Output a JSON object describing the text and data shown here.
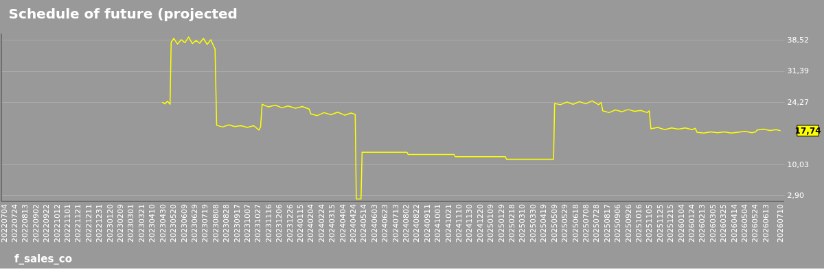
{
  "chart_data": {
    "type": "line",
    "title": "Schedule of future (projected",
    "series": [
      {
        "name": "f_sales_co",
        "color": "#ffff00",
        "x": [
          "2023-04-28",
          "2023-05-03",
          "2023-05-08",
          "2023-05-13",
          "2023-05-15",
          "2023-05-20",
          "2023-05-27",
          "2023-06-03",
          "2023-06-10",
          "2023-06-17",
          "2023-06-24",
          "2023-07-01",
          "2023-07-08",
          "2023-07-15",
          "2023-07-22",
          "2023-07-29",
          "2023-08-03",
          "2023-08-06",
          "2023-08-09",
          "2023-08-20",
          "2023-09-01",
          "2023-09-12",
          "2023-09-24",
          "2023-10-06",
          "2023-10-18",
          "2023-10-28",
          "2023-10-31",
          "2023-11-03",
          "2023-11-15",
          "2023-11-28",
          "2023-12-10",
          "2023-12-22",
          "2024-01-05",
          "2024-01-18",
          "2024-01-31",
          "2024-02-03",
          "2024-02-15",
          "2024-02-28",
          "2024-03-12",
          "2024-03-25",
          "2024-04-07",
          "2024-04-19",
          "2024-04-27",
          "2024-04-29",
          "2024-05-08",
          "2024-05-10",
          "2024-08-03",
          "2024-08-05",
          "2024-10-31",
          "2024-11-02",
          "2025-02-05",
          "2025-02-07",
          "2025-05-07",
          "2025-05-09",
          "2025-05-20",
          "2025-06-01",
          "2025-06-13",
          "2025-06-25",
          "2025-07-07",
          "2025-07-19",
          "2025-07-31",
          "2025-08-05",
          "2025-08-08",
          "2025-08-20",
          "2025-09-01",
          "2025-09-13",
          "2025-09-25",
          "2025-10-07",
          "2025-10-19",
          "2025-10-31",
          "2025-11-04",
          "2025-11-07",
          "2025-11-20",
          "2025-12-03",
          "2025-12-16",
          "2025-12-29",
          "2026-01-11",
          "2026-01-24",
          "2026-01-30",
          "2026-02-02",
          "2026-02-15",
          "2026-02-28",
          "2026-03-13",
          "2026-03-26",
          "2026-04-08",
          "2026-04-21",
          "2026-05-04",
          "2026-05-17",
          "2026-05-24",
          "2026-05-27",
          "2026-06-08",
          "2026-06-20",
          "2026-07-02",
          "2026-07-10"
        ],
        "values": [
          24.3,
          23.9,
          24.5,
          23.8,
          38.0,
          38.9,
          37.6,
          38.6,
          37.9,
          39.2,
          37.7,
          38.4,
          37.8,
          38.9,
          37.5,
          38.6,
          37.2,
          36.5,
          19.0,
          18.6,
          19.1,
          18.7,
          18.9,
          18.5,
          18.9,
          17.9,
          18.6,
          23.8,
          23.2,
          23.6,
          23.0,
          23.4,
          22.9,
          23.3,
          22.7,
          21.6,
          21.2,
          21.9,
          21.4,
          22.0,
          21.3,
          21.8,
          21.5,
          2.1,
          2.1,
          12.8,
          12.8,
          12.3,
          12.3,
          11.8,
          11.8,
          11.2,
          11.2,
          24.0,
          23.7,
          24.3,
          23.8,
          24.4,
          23.9,
          24.6,
          23.7,
          24.2,
          22.3,
          21.9,
          22.5,
          22.1,
          22.6,
          22.2,
          22.4,
          21.9,
          22.3,
          18.2,
          18.5,
          18.0,
          18.4,
          18.1,
          18.4,
          18.0,
          18.3,
          17.4,
          17.2,
          17.5,
          17.3,
          17.5,
          17.2,
          17.4,
          17.6,
          17.3,
          17.5,
          17.9,
          18.1,
          17.8,
          18.0,
          17.74
        ]
      }
    ],
    "annotations": [
      {
        "text": "17,74",
        "x": "2026-07-10",
        "y": 17.74
      }
    ],
    "xlim": [
      "2022-06-28",
      "2026-07-17"
    ],
    "xticks": [
      {
        "value": "2022-07-04",
        "label": "20220704"
      },
      {
        "value": "2022-07-24",
        "label": "20220724"
      },
      {
        "value": "2022-08-13",
        "label": "20220813"
      },
      {
        "value": "2022-09-02",
        "label": "20220902"
      },
      {
        "value": "2022-09-22",
        "label": "20220922"
      },
      {
        "value": "2022-10-12",
        "label": "20221012"
      },
      {
        "value": "2022-11-01",
        "label": "20221101"
      },
      {
        "value": "2022-11-21",
        "label": "20221121"
      },
      {
        "value": "2022-12-11",
        "label": "20221211"
      },
      {
        "value": "2022-12-31",
        "label": "20221231"
      },
      {
        "value": "2023-01-20",
        "label": "20230120"
      },
      {
        "value": "2023-02-09",
        "label": "20230209"
      },
      {
        "value": "2023-03-01",
        "label": "20230301"
      },
      {
        "value": "2023-03-21",
        "label": "20230321"
      },
      {
        "value": "2023-04-10",
        "label": "20230410"
      },
      {
        "value": "2023-04-30",
        "label": "20230430"
      },
      {
        "value": "2023-05-20",
        "label": "20230520"
      },
      {
        "value": "2023-06-09",
        "label": "20230609"
      },
      {
        "value": "2023-06-29",
        "label": "20230629"
      },
      {
        "value": "2023-07-19",
        "label": "20230719"
      },
      {
        "value": "2023-08-08",
        "label": "20230808"
      },
      {
        "value": "2023-08-28",
        "label": "20230828"
      },
      {
        "value": "2023-09-17",
        "label": "20230917"
      },
      {
        "value": "2023-10-07",
        "label": "20231007"
      },
      {
        "value": "2023-10-27",
        "label": "20231027"
      },
      {
        "value": "2023-11-16",
        "label": "20231116"
      },
      {
        "value": "2023-12-06",
        "label": "20231206"
      },
      {
        "value": "2023-12-26",
        "label": "20231226"
      },
      {
        "value": "2024-01-15",
        "label": "20240115"
      },
      {
        "value": "2024-02-04",
        "label": "20240204"
      },
      {
        "value": "2024-02-24",
        "label": "20240224"
      },
      {
        "value": "2024-03-15",
        "label": "20240315"
      },
      {
        "value": "2024-04-04",
        "label": "20240404"
      },
      {
        "value": "2024-04-24",
        "label": "20240424"
      },
      {
        "value": "2024-05-14",
        "label": "20240514"
      },
      {
        "value": "2024-06-03",
        "label": "20240603"
      },
      {
        "value": "2024-06-23",
        "label": "20240623"
      },
      {
        "value": "2024-07-13",
        "label": "20240713"
      },
      {
        "value": "2024-08-02",
        "label": "20240802"
      },
      {
        "value": "2024-08-22",
        "label": "20240822"
      },
      {
        "value": "2024-09-11",
        "label": "20240911"
      },
      {
        "value": "2024-10-01",
        "label": "20241001"
      },
      {
        "value": "2024-10-21",
        "label": "20241021"
      },
      {
        "value": "2024-11-10",
        "label": "20241110"
      },
      {
        "value": "2024-11-30",
        "label": "20241130"
      },
      {
        "value": "2024-12-20",
        "label": "20241220"
      },
      {
        "value": "2025-01-09",
        "label": "20250109"
      },
      {
        "value": "2025-01-29",
        "label": "20250129"
      },
      {
        "value": "2025-02-18",
        "label": "20250218"
      },
      {
        "value": "2025-03-10",
        "label": "20250310"
      },
      {
        "value": "2025-03-30",
        "label": "20250330"
      },
      {
        "value": "2025-04-19",
        "label": "20250419"
      },
      {
        "value": "2025-05-09",
        "label": "20250509"
      },
      {
        "value": "2025-05-29",
        "label": "20250529"
      },
      {
        "value": "2025-06-18",
        "label": "20250618"
      },
      {
        "value": "2025-07-08",
        "label": "20250708"
      },
      {
        "value": "2025-07-28",
        "label": "20250728"
      },
      {
        "value": "2025-08-17",
        "label": "20250817"
      },
      {
        "value": "2025-09-06",
        "label": "20250906"
      },
      {
        "value": "2025-09-26",
        "label": "20250926"
      },
      {
        "value": "2025-10-16",
        "label": "20251016"
      },
      {
        "value": "2025-11-05",
        "label": "20251105"
      },
      {
        "value": "2025-11-25",
        "label": "20251125"
      },
      {
        "value": "2025-12-15",
        "label": "20251215"
      },
      {
        "value": "2026-01-04",
        "label": "20260104"
      },
      {
        "value": "2026-01-24",
        "label": "20260124"
      },
      {
        "value": "2026-02-13",
        "label": "20260213"
      },
      {
        "value": "2026-03-05",
        "label": "20260305"
      },
      {
        "value": "2026-03-25",
        "label": "20260325"
      },
      {
        "value": "2026-04-14",
        "label": "20260414"
      },
      {
        "value": "2026-05-04",
        "label": "20260504"
      },
      {
        "value": "2026-05-24",
        "label": "20260524"
      },
      {
        "value": "2026-06-13",
        "label": "20260613"
      },
      {
        "value": "2026-07-10",
        "label": "20260710"
      }
    ],
    "ylim": [
      1.56,
      40.0
    ],
    "yticks": [
      {
        "value": 2.9,
        "label": "2,90"
      },
      {
        "value": 10.03,
        "label": "10,03"
      },
      {
        "value": 24.27,
        "label": "24,27"
      },
      {
        "value": 31.39,
        "label": "31,39"
      },
      {
        "value": 38.52,
        "label": "38,52"
      }
    ],
    "grid": "y",
    "legend": "bottom left",
    "marker": "none",
    "line_style": "solid"
  }
}
